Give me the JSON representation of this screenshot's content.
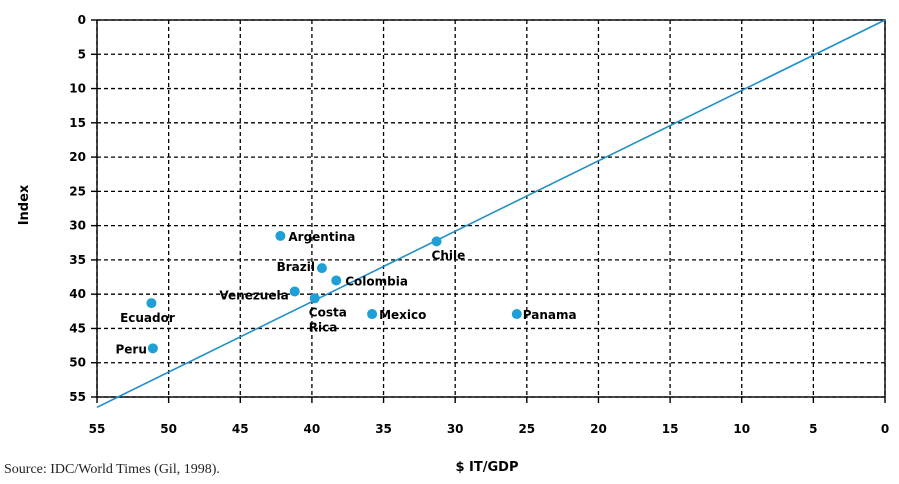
{
  "chart_data": {
    "type": "scatter",
    "title": "",
    "xlabel": "$ IT/GDP",
    "ylabel": "Index",
    "xlim": [
      55,
      0
    ],
    "ylim": [
      0,
      55
    ],
    "x_reversed": true,
    "y_reversed": true,
    "x_ticks": [
      "55",
      "50",
      "45",
      "40",
      "35",
      "30",
      "25",
      "20",
      "15",
      "10",
      "5",
      "0"
    ],
    "y_ticks": [
      "0",
      "5",
      "10",
      "15",
      "20",
      "25",
      "30",
      "35",
      "40",
      "45",
      "50",
      "55"
    ],
    "grid": true,
    "grid_style": "dashed",
    "point_color": "#1e9fd6",
    "line_color": "#1e8fc8",
    "trend_line": {
      "x": [
        55,
        0
      ],
      "y": [
        56.5,
        0
      ]
    },
    "points": [
      {
        "label": "Argentina",
        "x": 42.2,
        "y": 31.5
      },
      {
        "label": "Chile",
        "x": 31.3,
        "y": 32.3
      },
      {
        "label": "Brazil",
        "x": 39.3,
        "y": 36.2
      },
      {
        "label": "Colombia",
        "x": 38.3,
        "y": 38.0
      },
      {
        "label": "Venezuela",
        "x": 41.2,
        "y": 39.6
      },
      {
        "label": "Ecuador",
        "x": 51.2,
        "y": 41.3
      },
      {
        "label": "Costa Rica",
        "x": 39.8,
        "y": 40.6
      },
      {
        "label": "Mexico",
        "x": 35.8,
        "y": 42.9
      },
      {
        "label": "Panama",
        "x": 25.7,
        "y": 42.9
      },
      {
        "label": "Peru",
        "x": 51.1,
        "y": 47.9
      }
    ]
  },
  "source": "Source: IDC/World Times (Gil, 1998)."
}
